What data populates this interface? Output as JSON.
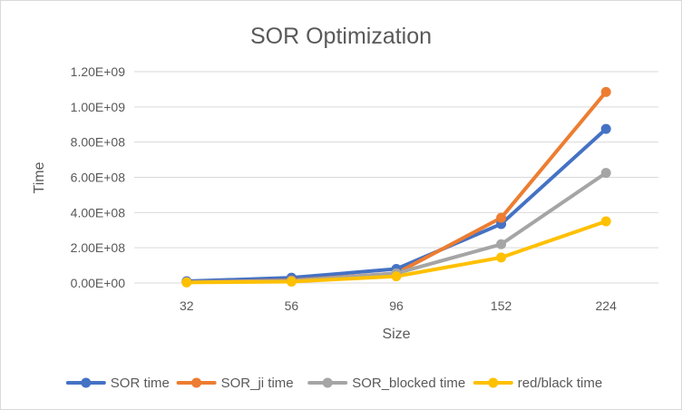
{
  "chart_data": {
    "type": "line",
    "title": "SOR Optimization",
    "xlabel": "Size",
    "ylabel": "Time",
    "categories": [
      "32",
      "56",
      "96",
      "152",
      "224"
    ],
    "y_tick_labels": [
      "0.00E+00",
      "2.00E+08",
      "4.00E+08",
      "6.00E+08",
      "8.00E+08",
      "1.00E+09",
      "1.20E+09"
    ],
    "ylim": [
      0,
      1200000000
    ],
    "grid": true,
    "legend_position": "bottom",
    "series": [
      {
        "name": "SOR time",
        "color": "#4472c4",
        "values": [
          10000000,
          30000000,
          80000000,
          335000000,
          875000000
        ]
      },
      {
        "name": "SOR_ji time",
        "color": "#ed7d31",
        "values": [
          5000000,
          15000000,
          55000000,
          370000000,
          1085000000
        ]
      },
      {
        "name": "SOR_blocked time",
        "color": "#a5a5a5",
        "values": [
          5000000,
          12000000,
          55000000,
          220000000,
          625000000
        ]
      },
      {
        "name": "red/black time",
        "color": "#ffc000",
        "values": [
          3000000,
          8000000,
          38000000,
          145000000,
          350000000
        ]
      }
    ]
  }
}
